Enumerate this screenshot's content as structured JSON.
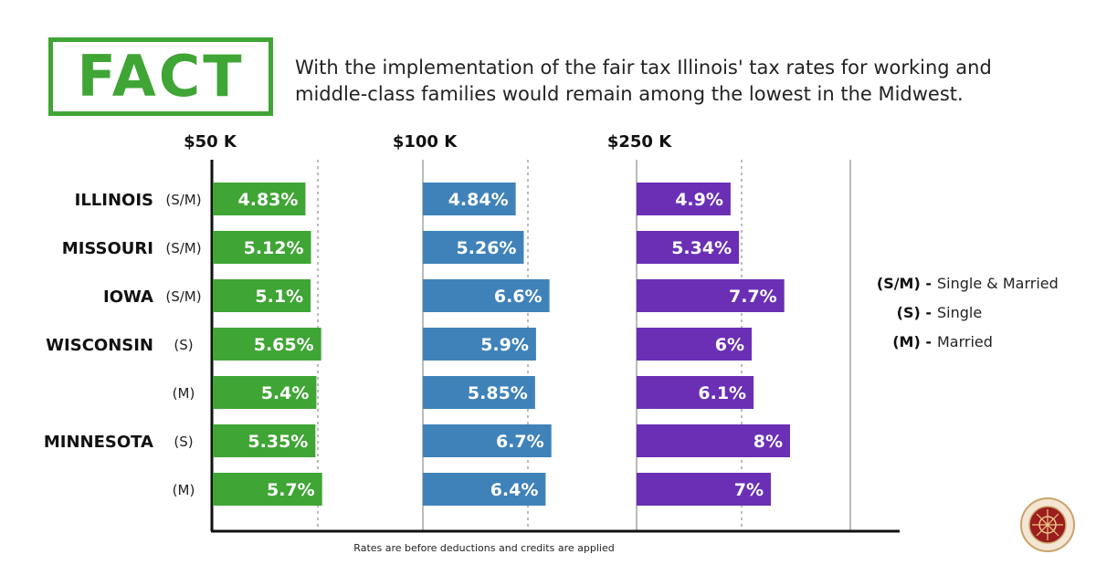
{
  "header": {
    "badge": "FACT",
    "headline": "With the implementation of the fair tax Illinois' tax rates for working and middle-class families would remain among the lowest in the Midwest."
  },
  "footnote": "Rates are before deductions and credits are applied",
  "legend": [
    {
      "code": "(S/M) -",
      "desc": "Single & Married"
    },
    {
      "code": "(S) -",
      "desc": "Single"
    },
    {
      "code": "(M) -",
      "desc": "Married"
    }
  ],
  "seal": {
    "icon": "state-seal-icon"
  },
  "colors": {
    "c50": "#3fa535",
    "c100": "#3f82b9",
    "c250": "#6a2fb5",
    "grid": "#bbbbbb",
    "axis": "#111111"
  },
  "chart_data": {
    "type": "bar",
    "orientation": "horizontal",
    "groups": [
      "$50 K",
      "$100 K",
      "$250 K"
    ],
    "rows": [
      {
        "state": "ILLINOIS",
        "filing": "(S/M)"
      },
      {
        "state": "MISSOURI",
        "filing": "(S/M)"
      },
      {
        "state": "IOWA",
        "filing": "(S/M)"
      },
      {
        "state": "WISCONSIN",
        "filing": "(S)"
      },
      {
        "state": "",
        "filing": "(M)"
      },
      {
        "state": "MINNESOTA",
        "filing": "(S)"
      },
      {
        "state": "",
        "filing": "(M)"
      }
    ],
    "series": [
      {
        "values": [
          4.83,
          5.12,
          5.1,
          5.65,
          5.4,
          5.35,
          5.7
        ],
        "labels": [
          "4.83%",
          "5.12%",
          "5.1%",
          "5.65%",
          "5.4%",
          "5.35%",
          "5.7%"
        ]
      },
      {
        "values": [
          4.84,
          5.26,
          6.6,
          5.9,
          5.85,
          6.7,
          6.4
        ],
        "labels": [
          "4.84%",
          "5.26%",
          "6.6%",
          "5.9%",
          "5.85%",
          "6.7%",
          "6.4%"
        ]
      },
      {
        "values": [
          4.9,
          5.34,
          7.7,
          6.0,
          6.1,
          8.0,
          7.0
        ],
        "labels": [
          "4.9%",
          "5.34%",
          "7.7%",
          "6%",
          "6.1%",
          "8%",
          "7%"
        ]
      }
    ],
    "xlim": [
      0,
      10
    ],
    "grid": true
  }
}
